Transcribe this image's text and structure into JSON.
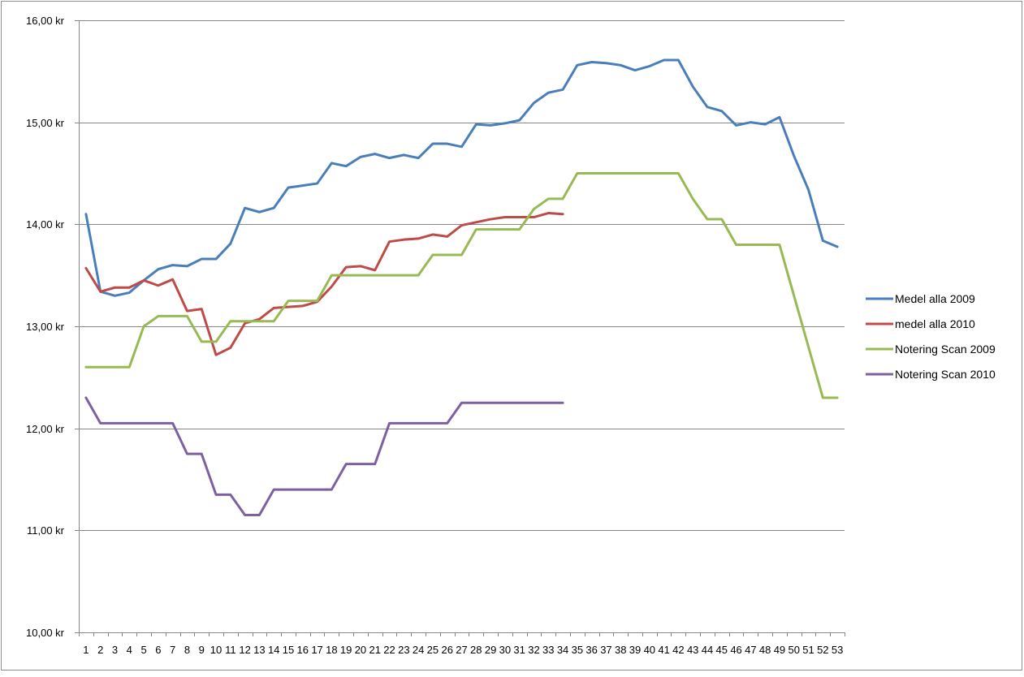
{
  "chart_data": {
    "type": "line",
    "title": "",
    "xlabel": "",
    "ylabel": "",
    "ylim": [
      10,
      16
    ],
    "y_ticks": [
      "10,00 kr",
      "11,00 kr",
      "12,00 kr",
      "13,00 kr",
      "14,00 kr",
      "15,00 kr",
      "16,00 kr"
    ],
    "categories": [
      "1",
      "2",
      "3",
      "4",
      "5",
      "6",
      "7",
      "8",
      "9",
      "10",
      "11",
      "12",
      "13",
      "14",
      "15",
      "16",
      "17",
      "18",
      "19",
      "20",
      "21",
      "22",
      "23",
      "24",
      "25",
      "26",
      "27",
      "28",
      "29",
      "30",
      "31",
      "32",
      "33",
      "34",
      "35",
      "36",
      "37",
      "38",
      "39",
      "40",
      "41",
      "42",
      "43",
      "44",
      "45",
      "46",
      "47",
      "48",
      "49",
      "50",
      "51",
      "52",
      "53"
    ],
    "grid": true,
    "legend_position": "right",
    "series": [
      {
        "name": "Medel alla 2009",
        "color": "#4a7ebb",
        "values": [
          14.1,
          13.34,
          13.3,
          13.33,
          13.45,
          13.56,
          13.6,
          13.59,
          13.66,
          13.66,
          13.81,
          14.16,
          14.12,
          14.16,
          14.36,
          14.38,
          14.4,
          14.6,
          14.57,
          14.66,
          14.69,
          14.65,
          14.68,
          14.65,
          14.79,
          14.79,
          14.76,
          14.98,
          14.97,
          14.99,
          15.02,
          15.19,
          15.29,
          15.32,
          15.56,
          15.59,
          15.58,
          15.56,
          15.51,
          15.55,
          15.61,
          15.61,
          15.35,
          15.15,
          15.11,
          14.97,
          15.0,
          14.98,
          15.05,
          14.67,
          14.34,
          13.84,
          13.78
        ]
      },
      {
        "name": "medel alla 2010",
        "color": "#be4b48",
        "values": [
          13.57,
          13.34,
          13.38,
          13.38,
          13.45,
          13.4,
          13.46,
          13.15,
          13.17,
          12.72,
          12.79,
          13.03,
          13.07,
          13.18,
          13.19,
          13.2,
          13.24,
          13.39,
          13.58,
          13.59,
          13.55,
          13.83,
          13.85,
          13.86,
          13.9,
          13.88,
          13.99,
          14.02,
          14.05,
          14.07,
          14.07,
          14.07,
          14.11,
          14.1,
          null,
          null,
          null,
          null,
          null,
          null,
          null,
          null,
          null,
          null,
          null,
          null,
          null,
          null,
          null,
          null,
          null,
          null,
          null
        ]
      },
      {
        "name": "Notering Scan 2009",
        "color": "#98b954",
        "values": [
          12.6,
          12.6,
          12.6,
          12.6,
          13.0,
          13.1,
          13.1,
          13.1,
          12.85,
          12.85,
          13.05,
          13.05,
          13.05,
          13.05,
          13.25,
          13.25,
          13.25,
          13.5,
          13.5,
          13.5,
          13.5,
          13.5,
          13.5,
          13.5,
          13.7,
          13.7,
          13.7,
          13.95,
          13.95,
          13.95,
          13.95,
          14.15,
          14.25,
          14.25,
          14.5,
          14.5,
          14.5,
          14.5,
          14.5,
          14.5,
          14.5,
          14.5,
          14.25,
          14.05,
          14.05,
          13.8,
          13.8,
          13.8,
          13.8,
          13.3,
          12.8,
          12.3,
          12.3
        ]
      },
      {
        "name": "Notering Scan 2010",
        "color": "#7d60a0",
        "values": [
          12.3,
          12.05,
          12.05,
          12.05,
          12.05,
          12.05,
          12.05,
          11.75,
          11.75,
          11.35,
          11.35,
          11.15,
          11.15,
          11.4,
          11.4,
          11.4,
          11.4,
          11.4,
          11.65,
          11.65,
          11.65,
          12.05,
          12.05,
          12.05,
          12.05,
          12.05,
          12.25,
          12.25,
          12.25,
          12.25,
          12.25,
          12.25,
          12.25,
          12.25,
          null,
          null,
          null,
          null,
          null,
          null,
          null,
          null,
          null,
          null,
          null,
          null,
          null,
          null,
          null,
          null,
          null,
          null,
          null
        ]
      }
    ]
  }
}
